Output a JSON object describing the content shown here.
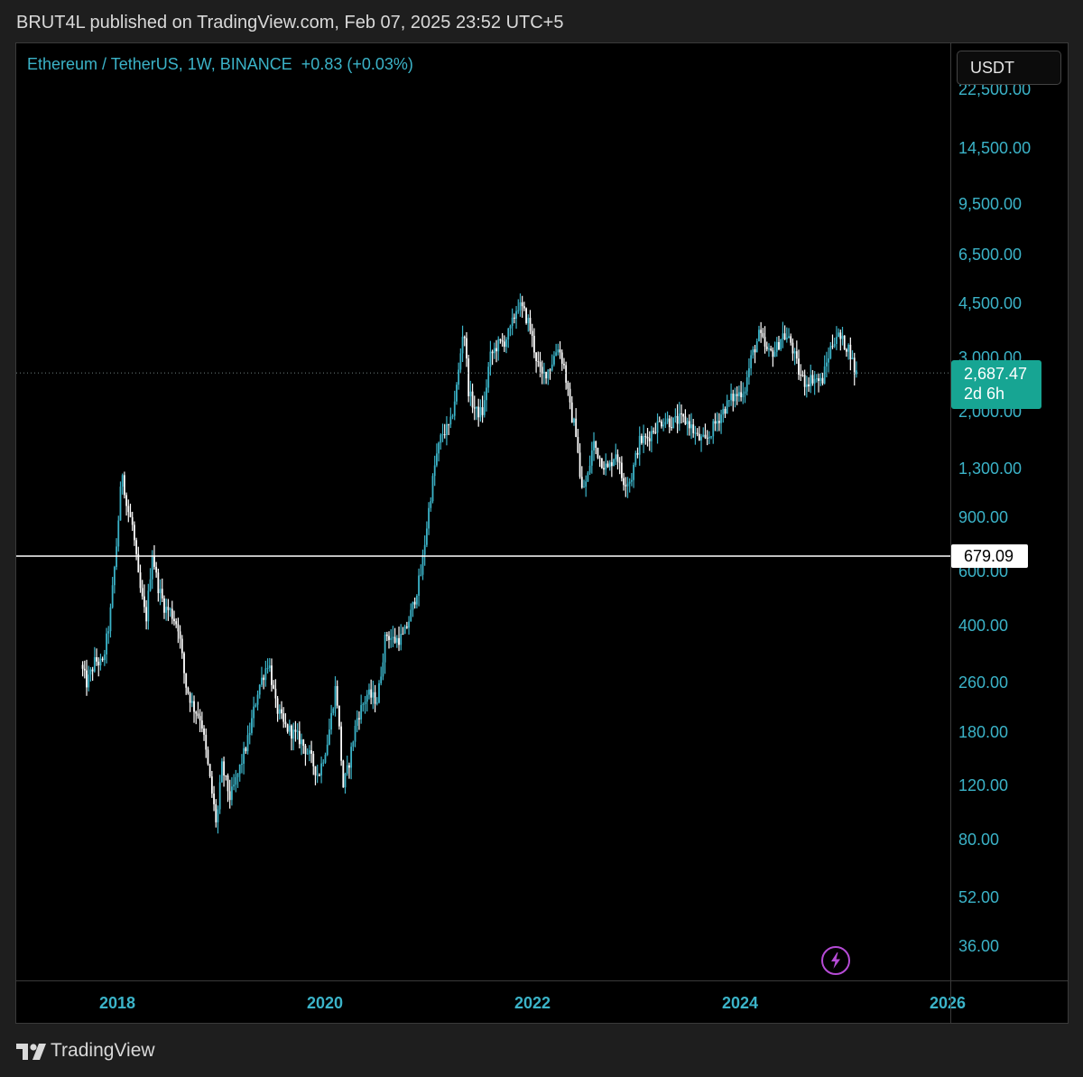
{
  "header": {
    "published_text": "BRUT4L published on TradingView.com, Feb 07, 2025 23:52 UTC+5"
  },
  "legend": {
    "symbol_text": "Ethereum / TetherUS, 1W, BINANCE",
    "change_text": "+0.83 (+0.03%)"
  },
  "currency_button": {
    "label": "USDT"
  },
  "footer": {
    "brand": "TradingView"
  },
  "colors": {
    "accent": "#3bb3c8",
    "candle_up": "#3bb3c8",
    "candle_down": "#ffffff",
    "current_price_badge": "#17a593",
    "alert_icon": "#b64bd6"
  },
  "chart_data": {
    "type": "candlestick",
    "title": "Ethereum / TetherUS, 1W, BINANCE",
    "y_scale": "log",
    "ylim": [
      28,
      32000
    ],
    "xlim": [
      2017.0,
      2026.0
    ],
    "price_axis_labels": [
      {
        "text": "22,500.00",
        "value": 22500
      },
      {
        "text": "14,500.00",
        "value": 14500
      },
      {
        "text": "9,500.00",
        "value": 9500
      },
      {
        "text": "6,500.00",
        "value": 6500
      },
      {
        "text": "4,500.00",
        "value": 4500
      },
      {
        "text": "3,000.00",
        "value": 3000
      },
      {
        "text": "2,000.00",
        "value": 2000
      },
      {
        "text": "1,300.00",
        "value": 1300
      },
      {
        "text": "900.00",
        "value": 900
      },
      {
        "text": "600.00",
        "value": 600
      },
      {
        "text": "400.00",
        "value": 400
      },
      {
        "text": "260.00",
        "value": 260
      },
      {
        "text": "180.00",
        "value": 180
      },
      {
        "text": "120.00",
        "value": 120
      },
      {
        "text": "80.00",
        "value": 80
      },
      {
        "text": "52.00",
        "value": 52
      },
      {
        "text": "36.00",
        "value": 36
      }
    ],
    "time_axis_labels": [
      {
        "text": "2018",
        "value": 2018
      },
      {
        "text": "2020",
        "value": 2020
      },
      {
        "text": "2022",
        "value": 2022
      },
      {
        "text": "2024",
        "value": 2024
      },
      {
        "text": "2026",
        "value": 2026
      }
    ],
    "current_price": {
      "value": 2687.47,
      "label": "2,687.47",
      "countdown": "2d 6h"
    },
    "horizontal_level": {
      "value": 679.09,
      "label": "679.09"
    },
    "price_path": [
      [
        2017.64,
        300
      ],
      [
        2017.7,
        260
      ],
      [
        2017.78,
        310
      ],
      [
        2017.85,
        300
      ],
      [
        2017.92,
        420
      ],
      [
        2017.98,
        700
      ],
      [
        2018.04,
        1300
      ],
      [
        2018.08,
        1000
      ],
      [
        2018.14,
        850
      ],
      [
        2018.2,
        560
      ],
      [
        2018.27,
        420
      ],
      [
        2018.33,
        700
      ],
      [
        2018.38,
        550
      ],
      [
        2018.45,
        460
      ],
      [
        2018.5,
        450
      ],
      [
        2018.58,
        400
      ],
      [
        2018.65,
        260
      ],
      [
        2018.72,
        220
      ],
      [
        2018.8,
        200
      ],
      [
        2018.88,
        130
      ],
      [
        2018.95,
        90
      ],
      [
        2019.0,
        140
      ],
      [
        2019.08,
        110
      ],
      [
        2019.15,
        130
      ],
      [
        2019.25,
        170
      ],
      [
        2019.35,
        250
      ],
      [
        2019.45,
        310
      ],
      [
        2019.52,
        220
      ],
      [
        2019.6,
        190
      ],
      [
        2019.68,
        180
      ],
      [
        2019.76,
        170
      ],
      [
        2019.85,
        150
      ],
      [
        2019.93,
        130
      ],
      [
        2020.02,
        170
      ],
      [
        2020.1,
        260
      ],
      [
        2020.17,
        120
      ],
      [
        2020.22,
        140
      ],
      [
        2020.3,
        200
      ],
      [
        2020.4,
        240
      ],
      [
        2020.5,
        230
      ],
      [
        2020.58,
        380
      ],
      [
        2020.66,
        360
      ],
      [
        2020.75,
        370
      ],
      [
        2020.83,
        450
      ],
      [
        2020.92,
        600
      ],
      [
        2021.0,
        1000
      ],
      [
        2021.06,
        1400
      ],
      [
        2021.12,
        1700
      ],
      [
        2021.2,
        1800
      ],
      [
        2021.27,
        2500
      ],
      [
        2021.33,
        3900
      ],
      [
        2021.38,
        2300
      ],
      [
        2021.45,
        2000
      ],
      [
        2021.52,
        2000
      ],
      [
        2021.58,
        3000
      ],
      [
        2021.65,
        3300
      ],
      [
        2021.72,
        3400
      ],
      [
        2021.78,
        3700
      ],
      [
        2021.85,
        4500
      ],
      [
        2021.9,
        4300
      ],
      [
        2021.96,
        3900
      ],
      [
        2022.02,
        3100
      ],
      [
        2022.08,
        2600
      ],
      [
        2022.16,
        2800
      ],
      [
        2022.24,
        3300
      ],
      [
        2022.3,
        2800
      ],
      [
        2022.36,
        2000
      ],
      [
        2022.42,
        1700
      ],
      [
        2022.46,
        1100
      ],
      [
        2022.52,
        1200
      ],
      [
        2022.58,
        1600
      ],
      [
        2022.65,
        1400
      ],
      [
        2022.72,
        1300
      ],
      [
        2022.8,
        1500
      ],
      [
        2022.86,
        1200
      ],
      [
        2022.94,
        1200
      ],
      [
        2023.02,
        1600
      ],
      [
        2023.1,
        1650
      ],
      [
        2023.18,
        1800
      ],
      [
        2023.26,
        1900
      ],
      [
        2023.34,
        1850
      ],
      [
        2023.42,
        1900
      ],
      [
        2023.5,
        1850
      ],
      [
        2023.58,
        1650
      ],
      [
        2023.66,
        1600
      ],
      [
        2023.74,
        1800
      ],
      [
        2023.82,
        2000
      ],
      [
        2023.9,
        2200
      ],
      [
        2023.98,
        2300
      ],
      [
        2024.04,
        2400
      ],
      [
        2024.1,
        3000
      ],
      [
        2024.18,
        3600
      ],
      [
        2024.26,
        3100
      ],
      [
        2024.34,
        3200
      ],
      [
        2024.4,
        3600
      ],
      [
        2024.48,
        3400
      ],
      [
        2024.56,
        2700
      ],
      [
        2024.62,
        2500
      ],
      [
        2024.7,
        2600
      ],
      [
        2024.78,
        2500
      ],
      [
        2024.86,
        3200
      ],
      [
        2024.92,
        3600
      ],
      [
        2024.98,
        3400
      ],
      [
        2025.05,
        3200
      ],
      [
        2025.1,
        2687.47
      ]
    ]
  }
}
